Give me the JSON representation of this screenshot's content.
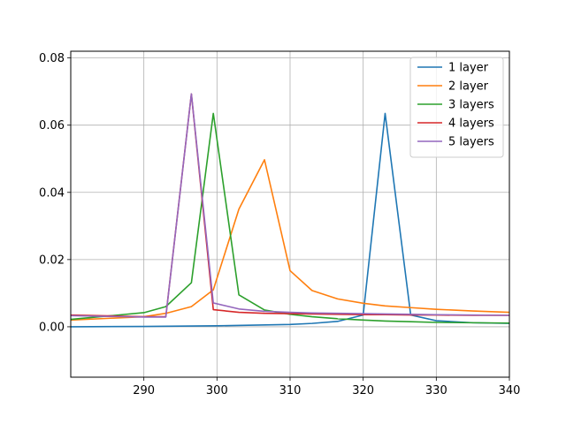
{
  "chart_data": {
    "type": "line",
    "title": "",
    "xlabel": "",
    "ylabel": "",
    "xlim": [
      280,
      340
    ],
    "ylim": [
      -0.015,
      0.082
    ],
    "grid": true,
    "legend_position": "top-right",
    "x_ticks": [
      290,
      300,
      310,
      320,
      330,
      340
    ],
    "x_tick_labels": [
      "290",
      "300",
      "310",
      "320",
      "330",
      "340"
    ],
    "y_ticks": [
      0.0,
      0.02,
      0.04,
      0.06,
      0.08
    ],
    "y_tick_labels": [
      "0.00",
      "0.02",
      "0.04",
      "0.06",
      "0.08"
    ],
    "series": [
      {
        "name": "1 layer",
        "color": "#1f77b4",
        "x": [
          280,
          290,
          300,
          310,
          313,
          316.5,
          320,
          323,
          326.5,
          330,
          335,
          340
        ],
        "y": [
          0.0,
          0.0001,
          0.0003,
          0.0007,
          0.001,
          0.0016,
          0.0035,
          0.0635,
          0.0035,
          0.0018,
          0.0012,
          0.001
        ]
      },
      {
        "name": "2 layer",
        "color": "#ff7f0e",
        "x": [
          280,
          290,
          293,
          296.5,
          299.5,
          303,
          306.5,
          310,
          313,
          316.5,
          320,
          323,
          326.5,
          330,
          335,
          340
        ],
        "y": [
          0.002,
          0.003,
          0.004,
          0.006,
          0.011,
          0.035,
          0.0497,
          0.0167,
          0.0108,
          0.0083,
          0.007,
          0.0062,
          0.0057,
          0.0052,
          0.0047,
          0.0043
        ]
      },
      {
        "name": "3 layers",
        "color": "#2ca02c",
        "x": [
          280,
          290,
          293,
          296.5,
          299.5,
          303,
          306.5,
          310,
          313,
          316.5,
          320,
          323,
          326.5,
          330,
          335,
          340
        ],
        "y": [
          0.0022,
          0.0042,
          0.006,
          0.0131,
          0.0635,
          0.0095,
          0.005,
          0.0037,
          0.003,
          0.0024,
          0.002,
          0.0017,
          0.0015,
          0.0013,
          0.0012,
          0.0011
        ]
      },
      {
        "name": "4 layers",
        "color": "#d62728",
        "x": [
          280,
          290,
          293,
          296.5,
          299.5,
          303,
          306.5,
          310,
          313,
          316.5,
          320,
          323,
          326.5,
          330,
          335,
          340
        ],
        "y": [
          0.0035,
          0.003,
          0.003,
          0.0693,
          0.0051,
          0.0043,
          0.004,
          0.0039,
          0.0038,
          0.0037,
          0.0036,
          0.0036,
          0.0035,
          0.0035,
          0.0034,
          0.0034
        ]
      },
      {
        "name": "5 layers",
        "color": "#9467bd",
        "x": [
          280,
          290,
          293,
          296.5,
          299.5,
          303,
          306.5,
          310,
          313,
          316.5,
          320,
          323,
          326.5,
          330,
          335,
          340
        ],
        "y": [
          0.0033,
          0.0029,
          0.0029,
          0.0693,
          0.0071,
          0.0053,
          0.0046,
          0.0043,
          0.0041,
          0.004,
          0.0039,
          0.0038,
          0.0037,
          0.0036,
          0.0035,
          0.0034
        ]
      }
    ]
  }
}
